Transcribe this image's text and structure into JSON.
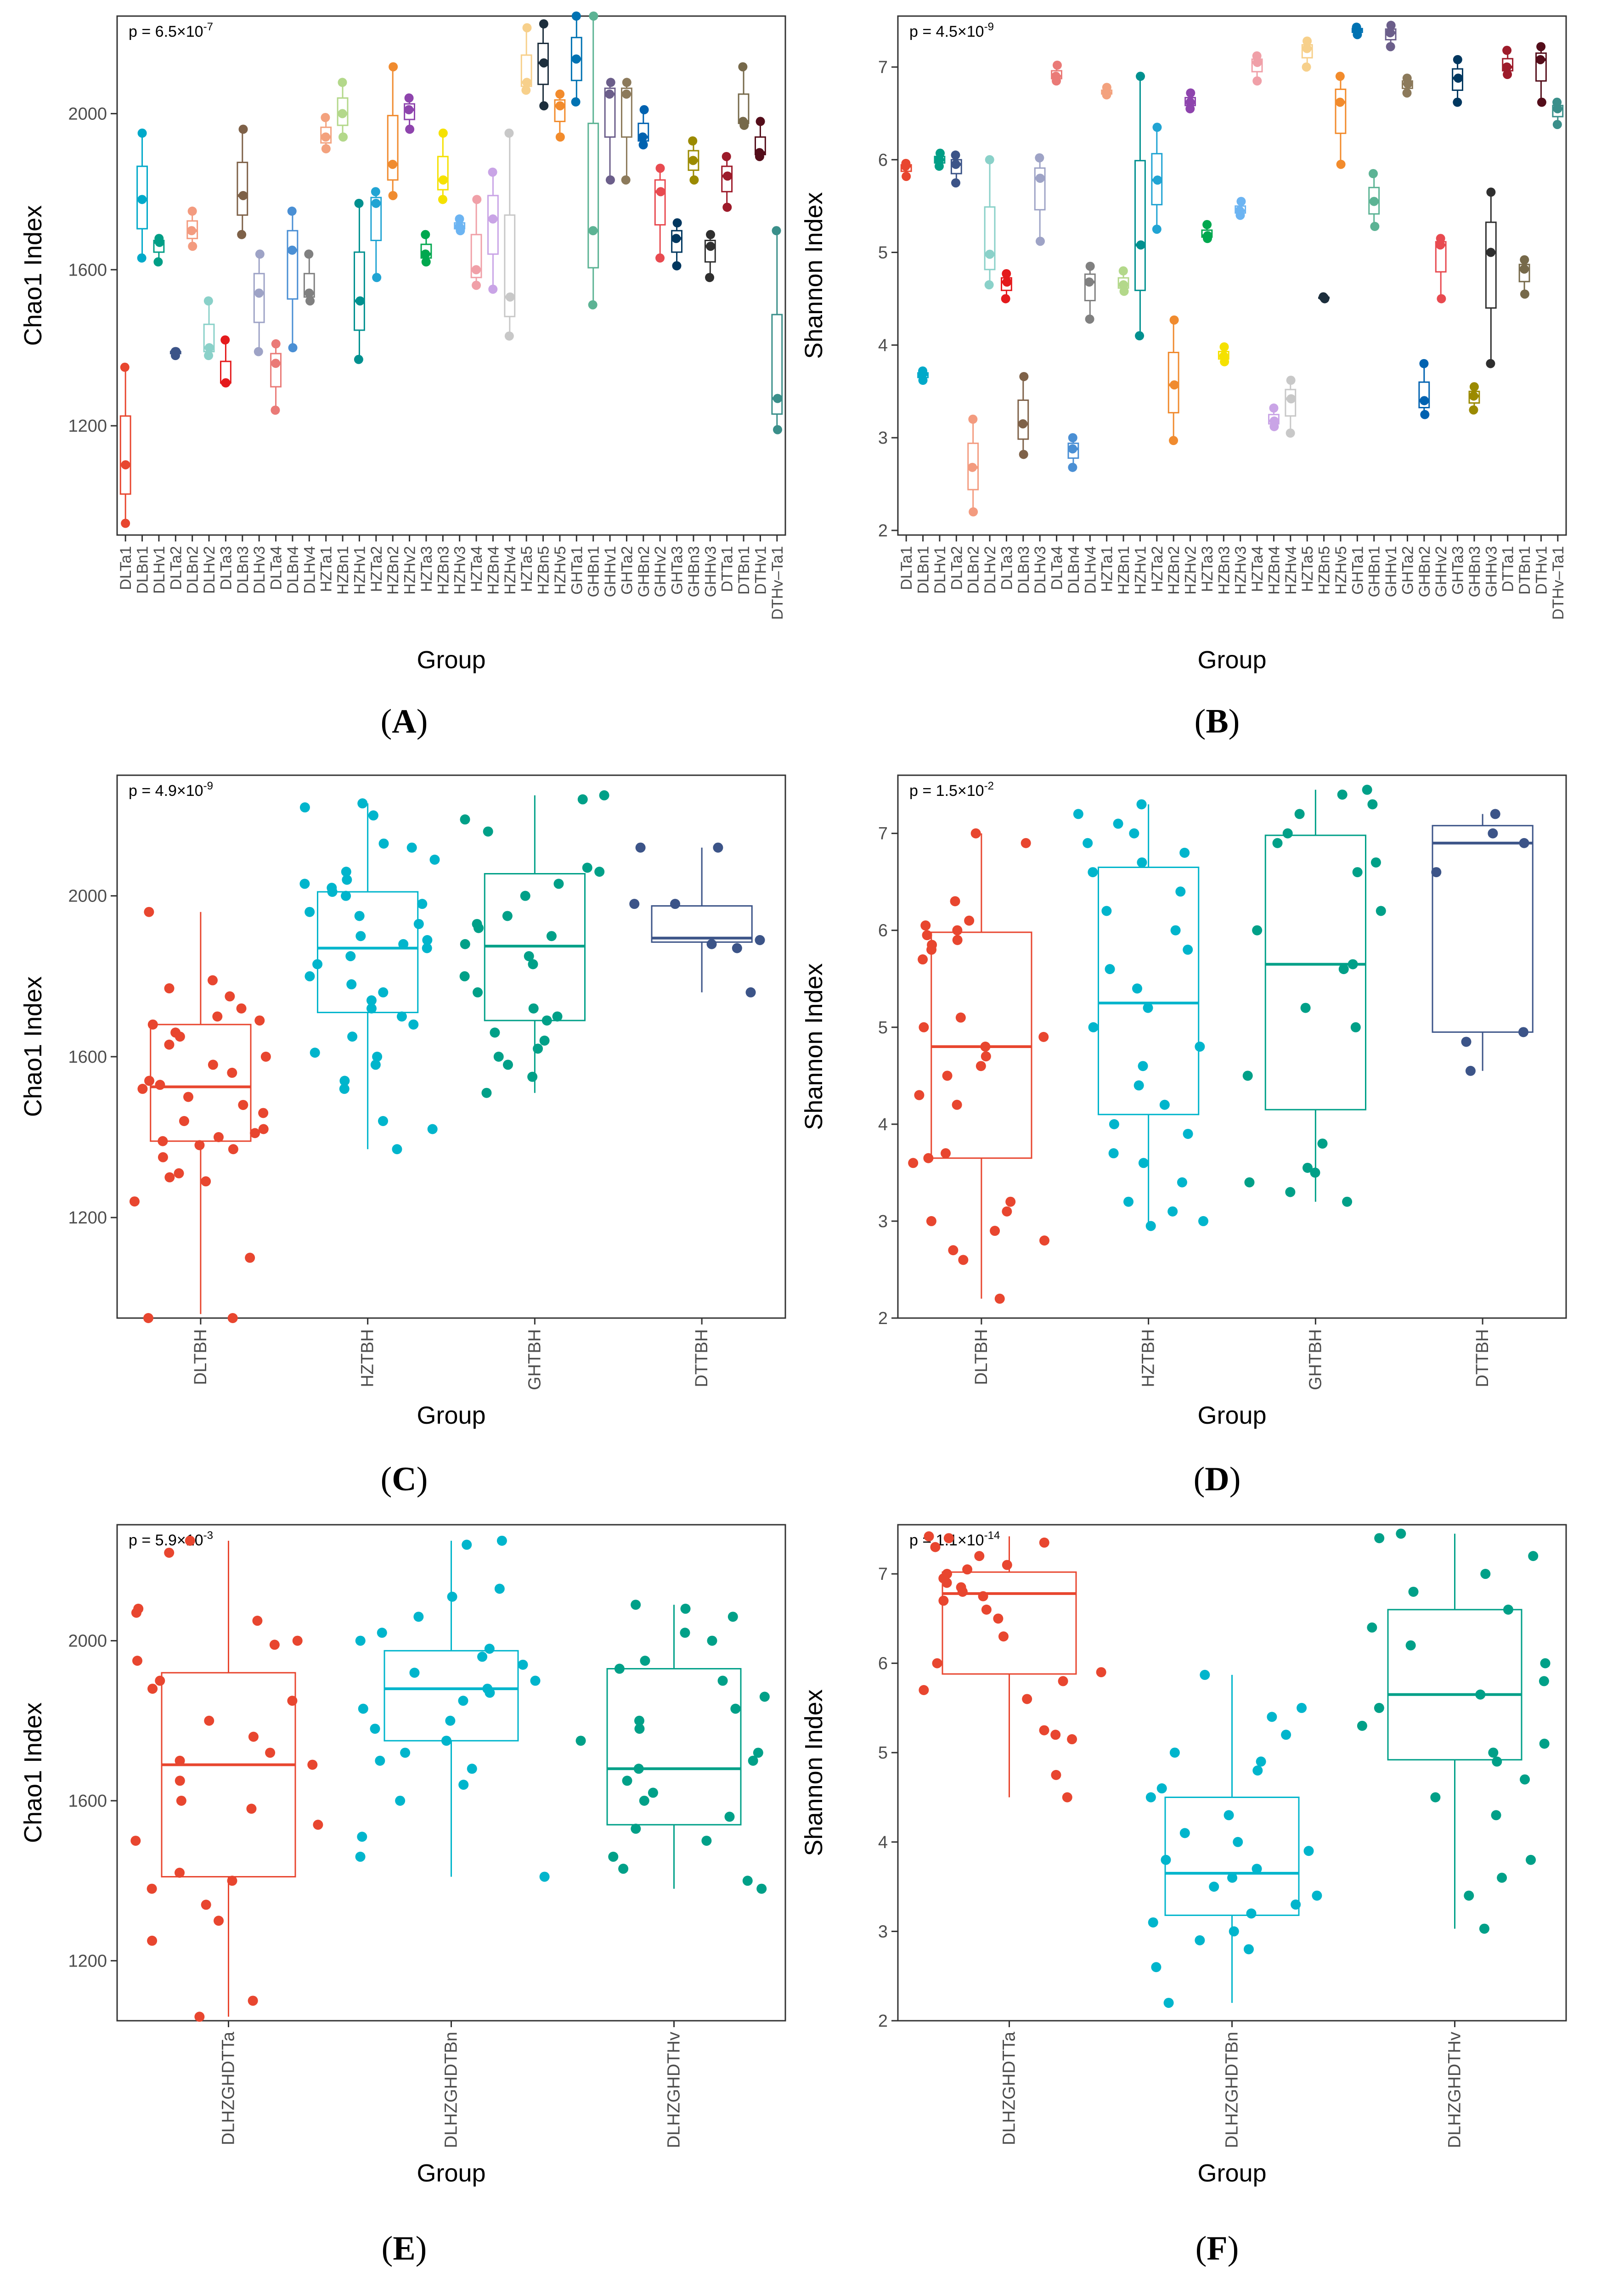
{
  "group_names_a": [
    "DLTa1",
    "DLBn1",
    "DLHv1",
    "DLTa2",
    "DLBn2",
    "DLHv2",
    "DLTa3",
    "DLBn3",
    "DLHv3",
    "DLTa4",
    "DLBn4",
    "DLHv4",
    "HZTa1",
    "HZBn1",
    "HZHv1",
    "HZTa2",
    "HZBn2",
    "HZHv2",
    "HZTa3",
    "HZBn3",
    "HZHv3",
    "HZTa4",
    "HZBn4",
    "HZHv4",
    "HZTa5",
    "HZBn5",
    "HZHv5",
    "GHTa1",
    "GHBn1",
    "GHHv1",
    "GHTa2",
    "GHBn2",
    "GHHv2",
    "GHTa3",
    "GHBn3",
    "GHHv3",
    "DTTa1",
    "DTBn1",
    "DTHv1",
    "DTHv–Ta1"
  ],
  "group_names_b": [
    "DLTa1",
    "DLBn1",
    "DLHv1",
    "DLTa2",
    "DLBn2",
    "DLHv2",
    "DLTa3",
    "DLBn3",
    "DLHv3",
    "DLTa4",
    "DLBn4",
    "DLHv4",
    "HZTa1",
    "HZBn1",
    "HZHv1",
    "HZTa2",
    "HZBn2",
    "HZHv2",
    "HZTa3",
    "HZBn3",
    "HZHv3",
    "HZTa4",
    "HZBn4",
    "HZHv4",
    "HZTa5",
    "HZBn5",
    "HZHv5",
    "GHTa1",
    "GHBn1",
    "GHHv1",
    "GHTa2",
    "GHBn2",
    "GHHv2",
    "GHTa3",
    "GHBn3",
    "GHHv3",
    "DTTa1",
    "DTBn1",
    "DTHv1",
    "DTHv–Ta1"
  ],
  "group_colors": [
    "#e8462f",
    "#00a9c9",
    "#009e86",
    "#3c5488",
    "#f39b7f",
    "#8ad1c9",
    "#e41a1c",
    "#7e6148",
    "#9ea3c6",
    "#ea7a77",
    "#4a8fd4",
    "#808080",
    "#f3a27e",
    "#b3d88a",
    "#00908f",
    "#21a4d3",
    "#f08b2f",
    "#8e44ad",
    "#00a84f",
    "#f5e100",
    "#6cb4f2",
    "#f0a0a8",
    "#c9a4e6",
    "#c8c8c8",
    "#f7d08b",
    "#1c2e3c",
    "#f28b2c",
    "#0072b2",
    "#5cb394",
    "#6b5e8a",
    "#8c7a5b",
    "#0062b0",
    "#e84a50",
    "#00375f",
    "#9b8a00",
    "#2f2f2f",
    "#9d1b2a",
    "#76694a",
    "#540d1a",
    "#3a8f8a"
  ],
  "chart_data": [
    {
      "panel": "A",
      "type": "box+scatter",
      "ylabel": "Chao1 Index",
      "xlabel": "Group",
      "annotation": "p = 6.5×10",
      "annotation_exp": "-7",
      "ylim": [
        920,
        2250
      ],
      "yticks": [
        1200,
        1600,
        2000
      ],
      "categories": [
        "DLTa1",
        "DLBn1",
        "DLHv1",
        "DLTa2",
        "DLBn2",
        "DLHv2",
        "DLTa3",
        "DLBn3",
        "DLHv3",
        "DLTa4",
        "DLBn4",
        "DLHv4",
        "HZTa1",
        "HZBn1",
        "HZHv1",
        "HZTa2",
        "HZBn2",
        "HZHv2",
        "HZTa3",
        "HZBn3",
        "HZHv3",
        "HZTa4",
        "HZBn4",
        "HZHv4",
        "HZTa5",
        "HZBn5",
        "HZHv5",
        "GHTa1",
        "GHBn1",
        "GHHv1",
        "GHTa2",
        "GHBn2",
        "GHHv2",
        "GHTa3",
        "GHBn3",
        "GHHv3",
        "DTTa1",
        "DTBn1",
        "DTHv1",
        "DTHv–Ta1"
      ],
      "points": [
        [
          950,
          1100,
          1350
        ],
        [
          1630,
          1780,
          1950
        ],
        [
          1620,
          1670,
          1680
        ],
        [
          1380,
          1390,
          1390
        ],
        [
          1660,
          1700,
          1750
        ],
        [
          1380,
          1400,
          1520
        ],
        [
          1310,
          1310,
          1420
        ],
        [
          1690,
          1790,
          1960
        ],
        [
          1390,
          1540,
          1640
        ],
        [
          1240,
          1360,
          1410
        ],
        [
          1400,
          1650,
          1750
        ],
        [
          1520,
          1540,
          1640
        ],
        [
          1910,
          1940,
          1990
        ],
        [
          1940,
          2000,
          2080
        ],
        [
          1370,
          1520,
          1770
        ],
        [
          1580,
          1770,
          1800
        ],
        [
          1790,
          1870,
          2120
        ],
        [
          1960,
          2010,
          2040
        ],
        [
          1620,
          1640,
          1690
        ],
        [
          1780,
          1830,
          1950
        ],
        [
          1700,
          1710,
          1730
        ],
        [
          1560,
          1600,
          1780
        ],
        [
          1550,
          1730,
          1850
        ],
        [
          1430,
          1530,
          1950
        ],
        [
          2060,
          2080,
          2220
        ],
        [
          2020,
          2130,
          2230
        ],
        [
          1940,
          2020,
          2050
        ],
        [
          2030,
          2140,
          2250
        ],
        [
          1510,
          1700,
          2250
        ],
        [
          1830,
          2050,
          2080
        ],
        [
          1830,
          2050,
          2080
        ],
        [
          1920,
          1940,
          2010
        ],
        [
          1630,
          1800,
          1860
        ],
        [
          1610,
          1680,
          1720
        ],
        [
          1830,
          1880,
          1930
        ],
        [
          1580,
          1660,
          1690
        ],
        [
          1760,
          1840,
          1890
        ],
        [
          1970,
          1980,
          2120
        ],
        [
          1890,
          1900,
          1980
        ],
        [
          1190,
          1270,
          1700
        ]
      ]
    },
    {
      "panel": "B",
      "type": "box+scatter",
      "ylabel": "Shannon Index",
      "xlabel": "Group",
      "annotation": "p = 4.5×10",
      "annotation_exp": "-9",
      "ylim": [
        1.95,
        7.55
      ],
      "yticks": [
        2,
        3,
        4,
        5,
        6,
        7
      ],
      "categories": [
        "DLTa1",
        "DLBn1",
        "DLHv1",
        "DLTa2",
        "DLBn2",
        "DLHv2",
        "DLTa3",
        "DLBn3",
        "DLHv3",
        "DLTa4",
        "DLBn4",
        "DLHv4",
        "HZTa1",
        "HZBn1",
        "HZHv1",
        "HZTa2",
        "HZBn2",
        "HZHv2",
        "HZTa3",
        "HZBn3",
        "HZHv3",
        "HZTa4",
        "HZBn4",
        "HZHv4",
        "HZTa5",
        "HZBn5",
        "HZHv5",
        "GHTa1",
        "GHBn1",
        "GHHv1",
        "GHTa2",
        "GHBn2",
        "GHHv2",
        "GHTa3",
        "GHBn3",
        "GHHv3",
        "DTTa1",
        "DTBn1",
        "DTHv1",
        "DTHv–Ta1"
      ],
      "points": [
        [
          5.82,
          5.93,
          5.96
        ],
        [
          3.62,
          3.68,
          3.72
        ],
        [
          5.93,
          6.0,
          6.07
        ],
        [
          5.75,
          5.95,
          6.05
        ],
        [
          2.2,
          2.68,
          3.2
        ],
        [
          4.65,
          4.98,
          6.0
        ],
        [
          4.5,
          4.68,
          4.77
        ],
        [
          2.82,
          3.15,
          3.66
        ],
        [
          5.12,
          5.8,
          6.02
        ],
        [
          6.85,
          6.9,
          7.02
        ],
        [
          2.68,
          2.88,
          3.0
        ],
        [
          4.28,
          4.68,
          4.85
        ],
        [
          6.7,
          6.72,
          6.78
        ],
        [
          4.58,
          4.65,
          4.8
        ],
        [
          4.1,
          5.08,
          6.9
        ],
        [
          5.25,
          5.78,
          6.35
        ],
        [
          2.97,
          3.57,
          4.27
        ],
        [
          6.55,
          6.62,
          6.72
        ],
        [
          5.15,
          5.18,
          5.3
        ],
        [
          3.82,
          3.88,
          3.98
        ],
        [
          5.4,
          5.45,
          5.55
        ],
        [
          6.85,
          7.05,
          7.12
        ],
        [
          3.12,
          3.18,
          3.32
        ],
        [
          3.05,
          3.42,
          3.62
        ],
        [
          7.0,
          7.2,
          7.28
        ],
        [
          4.5,
          4.51,
          4.52
        ],
        [
          5.95,
          6.62,
          6.9
        ],
        [
          7.35,
          7.4,
          7.43
        ],
        [
          5.28,
          5.55,
          5.85
        ],
        [
          7.22,
          7.37,
          7.45
        ],
        [
          6.72,
          6.82,
          6.88
        ],
        [
          3.25,
          3.4,
          3.8
        ],
        [
          4.5,
          5.08,
          5.15
        ],
        [
          6.62,
          6.88,
          7.08
        ],
        [
          3.3,
          3.45,
          3.55
        ],
        [
          3.8,
          5.0,
          5.65
        ],
        [
          6.92,
          7.0,
          7.18
        ],
        [
          4.55,
          4.82,
          4.92
        ],
        [
          6.62,
          7.08,
          7.22
        ],
        [
          6.38,
          6.55,
          6.62
        ]
      ]
    },
    {
      "panel": "C",
      "type": "box+scatter",
      "ylabel": "Chao1 Index",
      "xlabel": "Group",
      "annotation": "p = 4.9×10",
      "annotation_exp": "-9",
      "ylim": [
        950,
        2300
      ],
      "yticks": [
        1200,
        1600,
        2000
      ],
      "categories": [
        "DLTBH",
        "HZTBH",
        "GHTBH",
        "DTTBH"
      ],
      "colors": [
        "#e8462f",
        "#00b5cc",
        "#00a088",
        "#3c5488"
      ],
      "box": [
        [
          1390,
          1525,
          1680,
          960,
          1960
        ],
        [
          1710,
          1870,
          2010,
          1370,
          2230
        ],
        [
          1690,
          1875,
          2055,
          1510,
          2250
        ],
        [
          1885,
          1895,
          1975,
          1760,
          2120
        ]
      ],
      "points": [
        [
          950,
          950,
          1100,
          1240,
          1290,
          1300,
          1310,
          1350,
          1370,
          1380,
          1390,
          1400,
          1410,
          1420,
          1440,
          1460,
          1480,
          1500,
          1520,
          1530,
          1540,
          1560,
          1580,
          1600,
          1630,
          1650,
          1660,
          1680,
          1690,
          1700,
          1720,
          1750,
          1770,
          1790,
          1960
        ],
        [
          1370,
          1420,
          1440,
          1520,
          1540,
          1580,
          1600,
          1610,
          1650,
          1680,
          1700,
          1720,
          1740,
          1760,
          1780,
          1800,
          1830,
          1850,
          1870,
          1880,
          1890,
          1900,
          1930,
          1950,
          1960,
          1980,
          2000,
          2010,
          2020,
          2030,
          2040,
          2060,
          2090,
          2120,
          2130,
          2200,
          2220,
          2230
        ],
        [
          1510,
          1550,
          1580,
          1600,
          1620,
          1640,
          1660,
          1690,
          1700,
          1720,
          1760,
          1800,
          1830,
          1850,
          1880,
          1900,
          1920,
          1930,
          1950,
          2000,
          2030,
          2060,
          2070,
          2160,
          2190,
          2240,
          2250
        ],
        [
          1760,
          1870,
          1880,
          1890,
          1980,
          1980,
          2120,
          2120
        ]
      ]
    },
    {
      "panel": "D",
      "type": "box+scatter",
      "ylabel": "Shannon Index",
      "xlabel": "Group",
      "annotation": "p = 1.5×10",
      "annotation_exp": "-2",
      "ylim": [
        2.0,
        7.6
      ],
      "yticks": [
        2,
        3,
        4,
        5,
        6,
        7
      ],
      "categories": [
        "DLTBH",
        "HZTBH",
        "GHTBH",
        "DTTBH"
      ],
      "colors": [
        "#e8462f",
        "#00b5cc",
        "#00a088",
        "#3c5488"
      ],
      "box": [
        [
          3.65,
          4.8,
          5.98,
          2.2,
          7.0
        ],
        [
          4.1,
          5.25,
          6.65,
          2.95,
          7.3
        ],
        [
          4.15,
          5.65,
          6.98,
          3.2,
          7.45
        ],
        [
          4.95,
          6.9,
          7.08,
          4.55,
          7.2
        ]
      ],
      "points": [
        [
          2.2,
          2.6,
          2.7,
          2.8,
          2.9,
          3.0,
          3.1,
          3.2,
          3.6,
          3.7,
          3.65,
          4.2,
          4.3,
          4.5,
          4.6,
          4.7,
          4.8,
          4.9,
          5.0,
          5.1,
          5.7,
          5.8,
          5.85,
          5.9,
          5.95,
          6.0,
          6.05,
          6.1,
          6.3,
          6.9,
          7.0
        ],
        [
          2.95,
          3.0,
          3.1,
          3.2,
          3.4,
          3.6,
          3.7,
          3.9,
          4.0,
          4.2,
          4.4,
          4.6,
          4.8,
          5.0,
          5.2,
          5.4,
          5.6,
          5.8,
          6.0,
          6.2,
          6.4,
          6.6,
          6.7,
          6.8,
          6.9,
          7.0,
          7.1,
          7.2,
          7.3
        ],
        [
          3.2,
          3.3,
          3.4,
          3.5,
          3.55,
          3.8,
          4.5,
          5.0,
          5.2,
          5.6,
          5.65,
          6.0,
          6.2,
          6.6,
          6.7,
          6.9,
          7.0,
          7.2,
          7.3,
          7.4,
          7.45
        ],
        [
          4.55,
          4.85,
          4.95,
          6.6,
          6.9,
          7.0,
          7.2
        ]
      ]
    },
    {
      "panel": "E",
      "type": "box+scatter",
      "ylabel": "Chao1 Index",
      "xlabel": "Group",
      "annotation": "p = 5.9×10",
      "annotation_exp": "-3",
      "ylim": [
        1050,
        2290
      ],
      "yticks": [
        1200,
        1600,
        2000
      ],
      "categories": [
        "DLHZGHDTTa",
        "DLHZGHDTBn",
        "DLHZGHDTHv"
      ],
      "colors": [
        "#e8462f",
        "#00b5cc",
        "#00a088"
      ],
      "box": [
        [
          1410,
          1690,
          1920,
          1060,
          2250
        ],
        [
          1750,
          1880,
          1975,
          1410,
          2250
        ],
        [
          1540,
          1680,
          1930,
          1380,
          2090
        ]
      ],
      "points": [
        [
          1060,
          1100,
          1250,
          1300,
          1340,
          1380,
          1400,
          1420,
          1500,
          1540,
          1580,
          1600,
          1650,
          1690,
          1700,
          1720,
          1760,
          1800,
          1850,
          1880,
          1900,
          1950,
          1990,
          2000,
          2050,
          2070,
          2080,
          2220,
          2250
        ],
        [
          1410,
          1460,
          1510,
          1600,
          1640,
          1680,
          1700,
          1720,
          1750,
          1780,
          1800,
          1830,
          1850,
          1870,
          1880,
          1900,
          1920,
          1940,
          1960,
          1980,
          2000,
          2020,
          2060,
          2110,
          2130,
          2240,
          2250
        ],
        [
          1380,
          1400,
          1430,
          1460,
          1500,
          1530,
          1560,
          1600,
          1620,
          1650,
          1680,
          1700,
          1720,
          1750,
          1780,
          1800,
          1830,
          1860,
          1900,
          1930,
          1950,
          2000,
          2020,
          2060,
          2080,
          2090
        ]
      ]
    },
    {
      "panel": "F",
      "type": "box+scatter",
      "ylabel": "Shannon Index",
      "xlabel": "Group",
      "annotation": "p = 1.1×10",
      "annotation_exp": "-14",
      "ylim": [
        2.0,
        7.55
      ],
      "yticks": [
        2,
        3,
        4,
        5,
        6,
        7
      ],
      "categories": [
        "DLHZGHDTTa",
        "DLHZGHDTBn",
        "DLHZGHDTHv"
      ],
      "colors": [
        "#e8462f",
        "#00b5cc",
        "#00a088"
      ],
      "box": [
        [
          5.88,
          6.78,
          7.02,
          4.5,
          7.42
        ],
        [
          3.18,
          3.65,
          4.5,
          2.2,
          5.87
        ],
        [
          4.92,
          5.65,
          6.6,
          3.03,
          7.45
        ]
      ],
      "points": [
        [
          4.5,
          4.75,
          5.15,
          5.2,
          5.25,
          5.6,
          5.7,
          5.8,
          5.9,
          6.0,
          6.3,
          6.5,
          6.6,
          6.7,
          6.75,
          6.8,
          6.85,
          6.9,
          6.95,
          7.0,
          7.05,
          7.1,
          7.2,
          7.3,
          7.35,
          7.4,
          7.42
        ],
        [
          2.2,
          2.6,
          2.8,
          2.9,
          3.0,
          3.1,
          3.2,
          3.3,
          3.4,
          3.5,
          3.6,
          3.7,
          3.8,
          3.9,
          4.0,
          4.1,
          4.3,
          4.5,
          4.6,
          4.8,
          4.9,
          5.0,
          5.2,
          5.4,
          5.5,
          5.87
        ],
        [
          3.03,
          3.4,
          3.6,
          3.8,
          4.3,
          4.5,
          4.7,
          4.9,
          5.0,
          5.1,
          5.3,
          5.5,
          5.65,
          5.8,
          6.0,
          6.2,
          6.4,
          6.6,
          6.8,
          7.0,
          7.2,
          7.4,
          7.45
        ]
      ]
    }
  ],
  "panel_labels": [
    "(A)",
    "(B)",
    "(C)",
    "(D)",
    "(E)",
    "(F)"
  ]
}
